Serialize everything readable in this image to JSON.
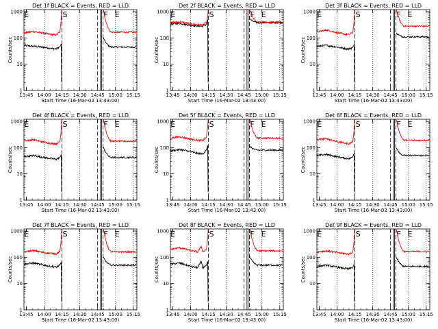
{
  "axes": {
    "x_ticks": [
      "13:45",
      "14:00",
      "14:15",
      "14:30",
      "14:45",
      "15:00",
      "15:15"
    ],
    "y_ticks": [
      "1",
      "10",
      "100",
      "1000"
    ],
    "ylabel": "Counts/sec",
    "xlabel": "Start Time (16-Mar-02 13:43:00)"
  },
  "colors": {
    "events": "#000000",
    "lld": "#ff0000"
  },
  "chart_data": [
    {
      "type": "line",
      "detector": "1f",
      "title": "Det 1f BLACK = Events, RED = LLD",
      "markers": {
        "E1": 13.7,
        "S": 14.25,
        "F": 14.825,
        "E2": 14.98
      },
      "dashed_lines": [
        14.25,
        14.75,
        14.825
      ],
      "dotted_lines": [
        14.0,
        14.5,
        15.0,
        15.25
      ],
      "xlim": [
        13.7167,
        15.3
      ],
      "ylim": [
        1,
        1200
      ],
      "yscale": "log",
      "series": [
        {
          "name": "Events",
          "values": [
            [
              13.72,
              52
            ],
            [
              13.85,
              48
            ],
            [
              14.0,
              44
            ],
            [
              14.1,
              40
            ],
            [
              14.17,
              38
            ],
            [
              14.22,
              46
            ],
            [
              14.24,
              60
            ],
            [
              14.245,
              2
            ]
          ]
        },
        {
          "name": "LLD",
          "values": [
            [
              13.72,
              155
            ],
            [
              13.85,
              175
            ],
            [
              14.0,
              150
            ],
            [
              14.1,
              135
            ],
            [
              14.17,
              130
            ],
            [
              14.22,
              170
            ],
            [
              14.24,
              500
            ],
            [
              14.245,
              1200
            ]
          ]
        }
      ]
    },
    {
      "type": "line",
      "detector": "2f",
      "title": "Det 2f BLACK = Events, RED = LLD",
      "markers": {
        "E1": 13.7,
        "S": 14.25,
        "F": 14.825,
        "E2": 14.98
      },
      "dashed_lines": [
        14.25,
        14.75,
        14.825
      ],
      "dotted_lines": [
        14.0,
        14.5,
        15.0,
        15.25
      ],
      "xlim": [
        13.7167,
        15.3
      ],
      "ylim": [
        1,
        1200
      ],
      "yscale": "log",
      "series": [
        {
          "name": "Events",
          "values": [
            [
              13.72,
              340
            ],
            [
              13.85,
              360
            ],
            [
              14.0,
              300
            ],
            [
              14.1,
              285
            ],
            [
              14.17,
              280
            ],
            [
              14.22,
              330
            ],
            [
              14.24,
              500
            ],
            [
              14.245,
              2
            ]
          ]
        },
        {
          "name": "LLD",
          "values": [
            [
              13.72,
              380
            ],
            [
              13.85,
              410
            ],
            [
              14.0,
              340
            ],
            [
              14.1,
              320
            ],
            [
              14.17,
              310
            ],
            [
              14.22,
              370
            ],
            [
              14.24,
              600
            ],
            [
              14.245,
              1200
            ]
          ]
        }
      ]
    },
    {
      "type": "line",
      "detector": "3f",
      "title": "Det 3f BLACK = Events, RED = LLD",
      "markers": {
        "E1": 13.7,
        "S": 14.25,
        "F": 14.825,
        "E2": 14.98
      },
      "dashed_lines": [
        14.25,
        14.75,
        14.825
      ],
      "dotted_lines": [
        14.0,
        14.5,
        15.0,
        15.25
      ],
      "xlim": [
        13.7167,
        15.3
      ],
      "ylim": [
        1,
        1200
      ],
      "yscale": "log",
      "series": [
        {
          "name": "Events",
          "values": [
            [
              13.72,
              48
            ],
            [
              13.85,
              52
            ],
            [
              14.0,
              45
            ],
            [
              14.1,
              40
            ],
            [
              14.17,
              38
            ],
            [
              14.22,
              44
            ],
            [
              14.24,
              55
            ],
            [
              14.245,
              2
            ]
          ]
        },
        {
          "name": "LLD",
          "values": [
            [
              13.72,
              170
            ],
            [
              13.85,
              200
            ],
            [
              14.0,
              160
            ],
            [
              14.1,
              140
            ],
            [
              14.17,
              135
            ],
            [
              14.22,
              160
            ],
            [
              14.24,
              450
            ],
            [
              14.245,
              1200
            ]
          ]
        }
      ]
    },
    {
      "type": "line",
      "detector": "4f",
      "title": "Det 4f BLACK = Events, RED = LLD",
      "markers": {
        "E1": 13.7,
        "S": 14.25,
        "F": 14.825,
        "E2": 14.98
      },
      "dashed_lines": [
        14.25,
        14.75,
        14.825
      ],
      "dotted_lines": [
        14.0,
        14.5,
        15.0,
        15.25
      ],
      "xlim": [
        13.7167,
        15.3
      ],
      "ylim": [
        1,
        1200
      ],
      "yscale": "log",
      "series": [
        {
          "name": "Events",
          "values": [
            [
              13.72,
              45
            ],
            [
              13.85,
              50
            ],
            [
              14.0,
              42
            ],
            [
              14.1,
              38
            ],
            [
              14.17,
              36
            ],
            [
              14.22,
              42
            ],
            [
              14.24,
              55
            ],
            [
              14.245,
              2
            ]
          ]
        },
        {
          "name": "LLD",
          "values": [
            [
              13.72,
              180
            ],
            [
              13.85,
              200
            ],
            [
              14.0,
              160
            ],
            [
              14.1,
              145
            ],
            [
              14.17,
              140
            ],
            [
              14.22,
              165
            ],
            [
              14.24,
              450
            ],
            [
              14.245,
              1200
            ]
          ]
        }
      ]
    },
    {
      "type": "line",
      "detector": "5f",
      "title": "Det 5f BLACK = Events, RED = LLD",
      "markers": {
        "E1": 13.7,
        "S": 14.25,
        "F": 14.825,
        "E2": 14.98
      },
      "dashed_lines": [
        14.25,
        14.75,
        14.825
      ],
      "dotted_lines": [
        14.0,
        14.5,
        15.0,
        15.25
      ],
      "xlim": [
        13.7167,
        15.3
      ],
      "ylim": [
        1,
        1200
      ],
      "yscale": "log",
      "series": [
        {
          "name": "Events",
          "values": [
            [
              13.72,
              75
            ],
            [
              13.85,
              85
            ],
            [
              14.0,
              70
            ],
            [
              14.1,
              60
            ],
            [
              14.17,
              58
            ],
            [
              14.22,
              80
            ],
            [
              14.24,
              120
            ],
            [
              14.245,
              2
            ]
          ]
        },
        {
          "name": "LLD",
          "values": [
            [
              13.72,
              230
            ],
            [
              13.85,
              260
            ],
            [
              14.0,
              210
            ],
            [
              14.1,
              190
            ],
            [
              14.17,
              185
            ],
            [
              14.22,
              240
            ],
            [
              14.24,
              600
            ],
            [
              14.245,
              1200
            ]
          ]
        }
      ]
    },
    {
      "type": "line",
      "detector": "6f",
      "title": "Det 6f BLACK = Events, RED = LLD",
      "markers": {
        "E1": 13.7,
        "S": 14.25,
        "F": 14.825,
        "E2": 14.98
      },
      "dashed_lines": [
        14.25,
        14.75,
        14.825
      ],
      "dotted_lines": [
        14.0,
        14.5,
        15.0,
        15.25
      ],
      "xlim": [
        13.7167,
        15.3
      ],
      "ylim": [
        1,
        1200
      ],
      "yscale": "log",
      "series": [
        {
          "name": "Events",
          "values": [
            [
              13.72,
              50
            ],
            [
              13.85,
              55
            ],
            [
              14.0,
              45
            ],
            [
              14.1,
              40
            ],
            [
              14.17,
              38
            ],
            [
              14.22,
              44
            ],
            [
              14.24,
              60
            ],
            [
              14.245,
              2
            ]
          ]
        },
        {
          "name": "LLD",
          "values": [
            [
              13.72,
              200
            ],
            [
              13.85,
              220
            ],
            [
              14.0,
              170
            ],
            [
              14.1,
              150
            ],
            [
              14.17,
              140
            ],
            [
              14.22,
              170
            ],
            [
              14.24,
              500
            ],
            [
              14.245,
              1200
            ]
          ]
        }
      ]
    },
    {
      "type": "line",
      "detector": "7f",
      "title": "Det 7f BLACK = Events, RED = LLD",
      "markers": {
        "E1": 13.7,
        "S": 14.25,
        "F": 14.825,
        "E2": 14.98
      },
      "dashed_lines": [
        14.25,
        14.75,
        14.825
      ],
      "dotted_lines": [
        14.0,
        14.5,
        15.0,
        15.25
      ],
      "xlim": [
        13.7167,
        15.3
      ],
      "ylim": [
        1,
        1200
      ],
      "yscale": "log",
      "series": [
        {
          "name": "Events",
          "values": [
            [
              13.72,
              55
            ],
            [
              13.85,
              60
            ],
            [
              14.0,
              50
            ],
            [
              14.1,
              45
            ],
            [
              14.17,
              42
            ],
            [
              14.22,
              50
            ],
            [
              14.24,
              65
            ],
            [
              14.245,
              2
            ]
          ]
        },
        {
          "name": "LLD",
          "values": [
            [
              13.72,
              160
            ],
            [
              13.85,
              180
            ],
            [
              14.0,
              150
            ],
            [
              14.1,
              140
            ],
            [
              14.17,
              135
            ],
            [
              14.22,
              165
            ],
            [
              14.24,
              450
            ],
            [
              14.245,
              1200
            ]
          ]
        }
      ]
    },
    {
      "type": "line",
      "detector": "8f",
      "title": "Det 8f BLACK = Events, RED = LLD",
      "markers": {
        "E1": 13.7,
        "S": 14.25,
        "F": 14.825,
        "E2": 14.98
      },
      "dashed_lines": [
        14.25,
        14.75,
        14.825
      ],
      "dotted_lines": [
        14.0,
        14.5,
        15.0,
        15.25
      ],
      "xlim": [
        13.7167,
        15.3
      ],
      "ylim": [
        1,
        1200
      ],
      "yscale": "log",
      "series": [
        {
          "name": "Events",
          "values": [
            [
              13.72,
              55
            ],
            [
              13.85,
              60
            ],
            [
              14.0,
              45
            ],
            [
              14.1,
              40
            ],
            [
              14.15,
              70
            ],
            [
              14.17,
              40
            ],
            [
              14.22,
              50
            ],
            [
              14.24,
              70
            ],
            [
              14.245,
              2
            ]
          ]
        },
        {
          "name": "LLD",
          "values": [
            [
              13.72,
              200
            ],
            [
              13.85,
              230
            ],
            [
              14.0,
              180
            ],
            [
              14.1,
              160
            ],
            [
              14.15,
              260
            ],
            [
              14.17,
              160
            ],
            [
              14.22,
              200
            ],
            [
              14.24,
              500
            ],
            [
              14.245,
              1200
            ]
          ]
        }
      ]
    },
    {
      "type": "line",
      "detector": "9f",
      "title": "Det 9f BLACK = Events, RED = LLD",
      "markers": {
        "E1": 13.7,
        "S": 14.25,
        "F": 14.825,
        "E2": 14.98
      },
      "dashed_lines": [
        14.25,
        14.75,
        14.825
      ],
      "dotted_lines": [
        14.0,
        14.5,
        15.0,
        15.25
      ],
      "xlim": [
        13.7167,
        15.3
      ],
      "ylim": [
        1,
        1200
      ],
      "yscale": "log",
      "series": [
        {
          "name": "Events",
          "values": [
            [
              13.72,
              45
            ],
            [
              13.85,
              50
            ],
            [
              14.0,
              42
            ],
            [
              14.1,
              38
            ],
            [
              14.17,
              36
            ],
            [
              14.22,
              42
            ],
            [
              14.24,
              55
            ],
            [
              14.245,
              2
            ]
          ]
        },
        {
          "name": "LLD",
          "values": [
            [
              13.72,
              160
            ],
            [
              13.85,
              175
            ],
            [
              14.0,
              150
            ],
            [
              14.1,
              140
            ],
            [
              14.17,
              130
            ],
            [
              14.22,
              160
            ],
            [
              14.24,
              450
            ],
            [
              14.245,
              1200
            ]
          ]
        }
      ]
    }
  ],
  "right_side": [
    {
      "events": 45,
      "lld": 165
    },
    {
      "events": 380,
      "lld": 400
    },
    {
      "events": 110,
      "lld": 280
    },
    {
      "events": 42,
      "lld": 175
    },
    {
      "events": 80,
      "lld": 230
    },
    {
      "events": 50,
      "lld": 190
    },
    {
      "events": 50,
      "lld": 160
    },
    {
      "events": 50,
      "lld": 175
    },
    {
      "events": 45,
      "lld": 165
    }
  ]
}
